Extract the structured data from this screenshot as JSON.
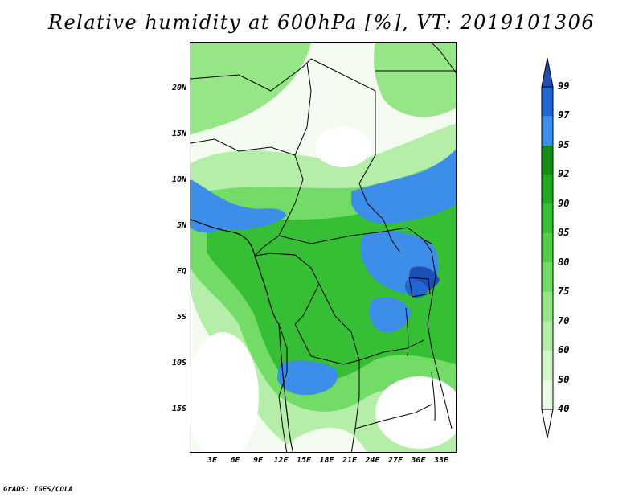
{
  "title": "Relative humidity at 600hPa [%], VT: 2019101306",
  "credit": "GrADS: IGES/COLA",
  "map": {
    "lat_labels": [
      "20N",
      "15N",
      "10N",
      "5N",
      "EQ",
      "5S",
      "10S",
      "15S"
    ],
    "lon_labels": [
      "3E",
      "6E",
      "9E",
      "12E",
      "15E",
      "18E",
      "21E",
      "24E",
      "27E",
      "30E",
      "33E"
    ],
    "variable": "relative humidity",
    "level": "600hPa",
    "units": "%",
    "valid_time": "2019101306"
  },
  "colorbar": {
    "levels": [
      "40",
      "50",
      "60",
      "70",
      "75",
      "80",
      "85",
      "90",
      "92",
      "95",
      "97",
      "99"
    ],
    "colors": [
      "#ffffff",
      "#ebfbe6",
      "#d2f6c8",
      "#b4eea8",
      "#96e687",
      "#73dc66",
      "#52cf48",
      "#36bf34",
      "#22a922",
      "#128e12",
      "#3c8ee8",
      "#2266d6",
      "#1e4fb5"
    ]
  }
}
